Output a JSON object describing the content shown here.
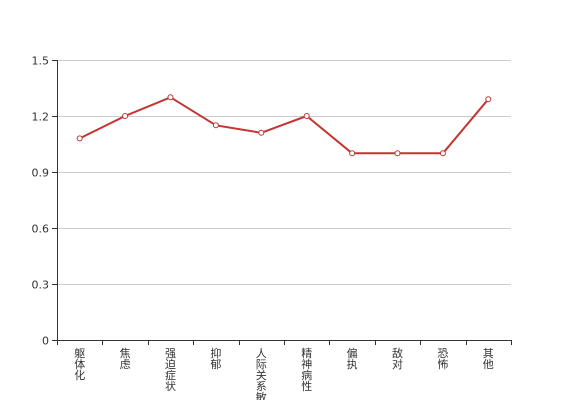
{
  "chart_data": {
    "type": "line",
    "title": "",
    "xlabel": "",
    "ylabel": "",
    "categories": [
      "躯体化",
      "焦虑",
      "强迫症状",
      "抑郁",
      "人际关系敏感",
      "精神病性",
      "偏执",
      "敌对",
      "恐怖",
      "其他"
    ],
    "series": [
      {
        "values": [
          1.08,
          1.2,
          1.3,
          1.15,
          1.11,
          1.2,
          1.0,
          1.0,
          1.0,
          1.29
        ]
      }
    ],
    "ylim": [
      0,
      1.5
    ],
    "yticks": [
      0,
      0.3,
      0.6,
      0.9,
      1.2,
      1.5
    ],
    "grid": true,
    "legend": "none",
    "colors": {
      "line": "#c23531",
      "grid": "#cccccc",
      "axis": "#333333",
      "marker_fill": "#ffffff"
    }
  }
}
